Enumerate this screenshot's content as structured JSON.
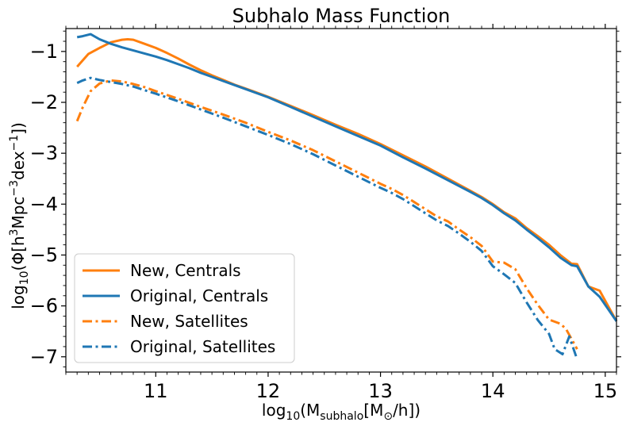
{
  "chart_data": {
    "type": "line",
    "title": "Subhalo Mass Function",
    "xlabel": "log10(Msubhalo[M⊙/h])",
    "ylabel": "log10(Φ[h3Mpc−3dex−1])",
    "xlabel_parts": {
      "base": "log",
      "sub": "10",
      "mid": "(M",
      "sub2": "subhalo",
      "mid2": "[M",
      "sub3": "⊙",
      "end": "/h])"
    },
    "ylabel_parts": {
      "base": "log",
      "sub": "10",
      "a": "(Φ[h",
      "sup1": "3",
      "b": "Mpc",
      "sup2": "−3",
      "c": "dex",
      "sup3": "−1",
      "d": "])"
    },
    "xlim": [
      10.2,
      15.1
    ],
    "ylim": [
      -7.3,
      -0.55
    ],
    "xticks": [
      11,
      12,
      13,
      14,
      15
    ],
    "yticks": [
      -1,
      -2,
      -3,
      -4,
      -5,
      -6,
      -7
    ],
    "legend_position": "lower-left",
    "colors": {
      "new": "#ff7f0e",
      "original": "#1f77b4"
    },
    "series": [
      {
        "name": "New, Centrals",
        "color": "#ff7f0e",
        "linestyle": "solid",
        "x": [
          10.3,
          10.4,
          10.5,
          10.6,
          10.7,
          10.75,
          10.8,
          10.9,
          11.0,
          11.1,
          11.2,
          11.3,
          11.4,
          11.5,
          11.6,
          11.7,
          11.8,
          11.9,
          12.0,
          12.2,
          12.4,
          12.6,
          12.8,
          13.0,
          13.2,
          13.4,
          13.6,
          13.8,
          13.9,
          14.0,
          14.1,
          14.2,
          14.3,
          14.4,
          14.5,
          14.6,
          14.7,
          14.75,
          14.85,
          14.95,
          15.1
        ],
        "y": [
          -1.3,
          -1.05,
          -0.93,
          -0.82,
          -0.77,
          -0.76,
          -0.77,
          -0.85,
          -0.93,
          -1.03,
          -1.14,
          -1.26,
          -1.37,
          -1.47,
          -1.56,
          -1.65,
          -1.73,
          -1.81,
          -1.89,
          -2.07,
          -2.25,
          -2.44,
          -2.62,
          -2.82,
          -3.04,
          -3.26,
          -3.5,
          -3.74,
          -3.86,
          -4.0,
          -4.16,
          -4.28,
          -4.47,
          -4.63,
          -4.8,
          -5.0,
          -5.17,
          -5.18,
          -5.62,
          -5.7,
          -6.3
        ]
      },
      {
        "name": "Original, Centrals",
        "color": "#1f77b4",
        "linestyle": "solid",
        "x": [
          10.3,
          10.35,
          10.42,
          10.5,
          10.6,
          10.7,
          10.8,
          10.9,
          11.0,
          11.1,
          11.2,
          11.3,
          11.4,
          11.5,
          11.6,
          11.7,
          11.8,
          11.9,
          12.0,
          12.2,
          12.4,
          12.6,
          12.8,
          13.0,
          13.2,
          13.4,
          13.6,
          13.8,
          13.9,
          14.0,
          14.1,
          14.2,
          14.3,
          14.4,
          14.5,
          14.6,
          14.7,
          14.75,
          14.85,
          14.95,
          15.1
        ],
        "y": [
          -0.72,
          -0.7,
          -0.66,
          -0.76,
          -0.85,
          -0.92,
          -0.98,
          -1.04,
          -1.1,
          -1.17,
          -1.25,
          -1.33,
          -1.42,
          -1.5,
          -1.58,
          -1.66,
          -1.74,
          -1.82,
          -1.9,
          -2.09,
          -2.28,
          -2.47,
          -2.66,
          -2.85,
          -3.08,
          -3.3,
          -3.53,
          -3.76,
          -3.88,
          -4.02,
          -4.18,
          -4.32,
          -4.5,
          -4.67,
          -4.85,
          -5.05,
          -5.2,
          -5.22,
          -5.62,
          -5.82,
          -6.3
        ]
      },
      {
        "name": "New, Satellites",
        "color": "#ff7f0e",
        "linestyle": "dashdot",
        "x": [
          10.3,
          10.35,
          10.42,
          10.5,
          10.6,
          10.7,
          10.8,
          10.9,
          11.0,
          11.2,
          11.4,
          11.6,
          11.8,
          12.0,
          12.2,
          12.4,
          12.6,
          12.8,
          13.0,
          13.1,
          13.2,
          13.3,
          13.4,
          13.5,
          13.6,
          13.7,
          13.8,
          13.9,
          14.0,
          14.1,
          14.2,
          14.3,
          14.4,
          14.5,
          14.6,
          14.65,
          14.75
        ],
        "y": [
          -2.37,
          -2.1,
          -1.78,
          -1.63,
          -1.57,
          -1.59,
          -1.64,
          -1.7,
          -1.78,
          -1.93,
          -2.09,
          -2.24,
          -2.4,
          -2.58,
          -2.75,
          -2.94,
          -3.16,
          -3.38,
          -3.6,
          -3.7,
          -3.82,
          -3.96,
          -4.1,
          -4.24,
          -4.34,
          -4.5,
          -4.65,
          -4.82,
          -5.13,
          -5.15,
          -5.28,
          -5.65,
          -5.98,
          -6.27,
          -6.35,
          -6.45,
          -6.85
        ]
      },
      {
        "name": "Original, Satellites",
        "color": "#1f77b4",
        "linestyle": "dashdot",
        "x": [
          10.3,
          10.35,
          10.42,
          10.5,
          10.6,
          10.7,
          10.8,
          10.9,
          11.0,
          11.2,
          11.4,
          11.6,
          11.8,
          12.0,
          12.2,
          12.4,
          12.6,
          12.8,
          13.0,
          13.1,
          13.2,
          13.3,
          13.4,
          13.5,
          13.6,
          13.7,
          13.8,
          13.9,
          14.0,
          14.1,
          14.2,
          14.3,
          14.4,
          14.5,
          14.55,
          14.62,
          14.68,
          14.75
        ],
        "y": [
          -1.62,
          -1.57,
          -1.52,
          -1.56,
          -1.6,
          -1.64,
          -1.69,
          -1.76,
          -1.83,
          -1.98,
          -2.14,
          -2.3,
          -2.47,
          -2.64,
          -2.82,
          -3.02,
          -3.24,
          -3.46,
          -3.68,
          -3.78,
          -3.9,
          -4.04,
          -4.18,
          -4.32,
          -4.43,
          -4.58,
          -4.74,
          -4.92,
          -5.22,
          -5.38,
          -5.55,
          -5.93,
          -6.28,
          -6.55,
          -6.85,
          -6.95,
          -6.6,
          -7.05
        ]
      }
    ]
  }
}
